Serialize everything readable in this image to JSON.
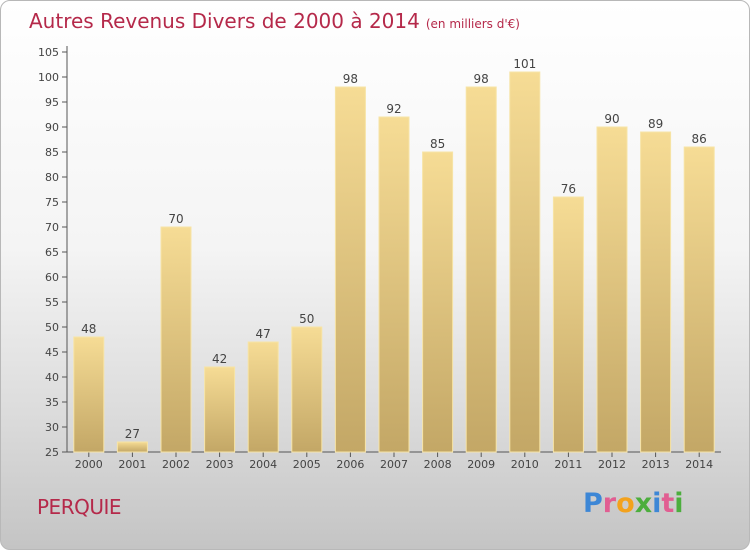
{
  "chart_data": {
    "type": "bar",
    "title": "Autres Revenus Divers de 2000 à 2014",
    "subtitle": "(en milliers d'€)",
    "categories": [
      "2000",
      "2001",
      "2002",
      "2003",
      "2004",
      "2005",
      "2006",
      "2007",
      "2008",
      "2009",
      "2010",
      "2011",
      "2012",
      "2013",
      "2014"
    ],
    "values": [
      48,
      27,
      70,
      42,
      47,
      50,
      98,
      92,
      85,
      98,
      101,
      76,
      90,
      89,
      86
    ],
    "ylim": [
      25,
      105
    ],
    "yticks": [
      25,
      30,
      35,
      40,
      45,
      50,
      55,
      60,
      65,
      70,
      75,
      80,
      85,
      90,
      95,
      100,
      105
    ],
    "grid": false,
    "xlabel": "",
    "ylabel": ""
  },
  "location": "PERQUIE",
  "logo": {
    "text": "Proxiti"
  },
  "colors": {
    "title": "#b5294a",
    "bar_top": "#f6dc95",
    "bar_bottom": "#c3a766",
    "bar_edge": "#f7e4a6"
  }
}
